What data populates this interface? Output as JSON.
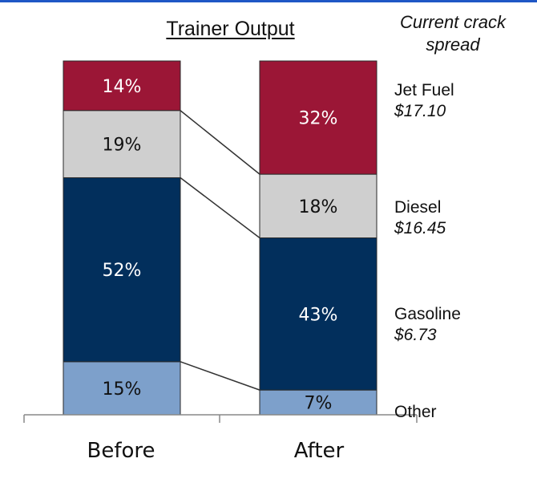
{
  "title": "Trainer Output",
  "spread_header": "Current crack spread",
  "chart_data": {
    "type": "bar",
    "stacked": true,
    "categories": [
      "Before",
      "After"
    ],
    "series": [
      {
        "name": "Other",
        "values": [
          15,
          7
        ],
        "color": "#7da0cb",
        "label_color": "#111111"
      },
      {
        "name": "Gasoline",
        "values": [
          52,
          43
        ],
        "color": "#022f5c",
        "label_color": "#ffffff"
      },
      {
        "name": "Diesel",
        "values": [
          19,
          18
        ],
        "color": "#cfcfcf",
        "label_color": "#111111"
      },
      {
        "name": "Jet Fuel",
        "values": [
          14,
          32
        ],
        "color": "#9b1636",
        "label_color": "#ffffff"
      }
    ],
    "data_labels": [
      [
        "15%",
        "52%",
        "19%",
        "14%"
      ],
      [
        "7%",
        "43%",
        "18%",
        "32%"
      ]
    ],
    "ylim": [
      0,
      100
    ],
    "right_labels": [
      {
        "name": "Jet Fuel",
        "value": "$17.10"
      },
      {
        "name": "Diesel",
        "value": "$16.45"
      },
      {
        "name": "Gasoline",
        "value": "$6.73"
      },
      {
        "name": "Other",
        "value": ""
      }
    ]
  }
}
